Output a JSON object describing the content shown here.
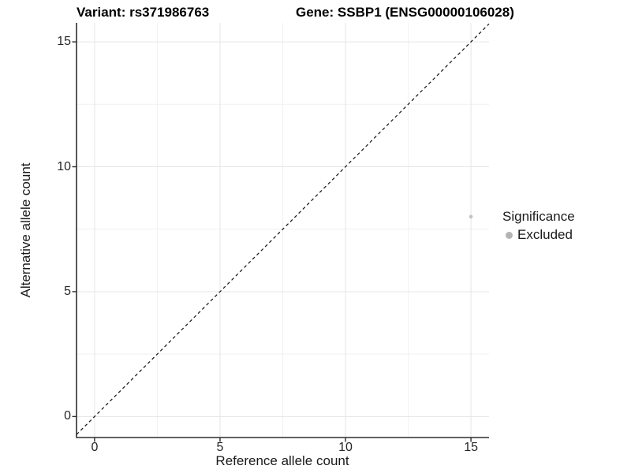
{
  "titles": {
    "left": "Variant: rs371986763",
    "right": "Gene: SSBP1 (ENSG00000106028)"
  },
  "axes": {
    "x_label": "Reference allele count",
    "y_label": "Alternative allele count"
  },
  "legend": {
    "title": "Significance",
    "items": [
      {
        "label": "Excluded",
        "color": "#b4b4b4"
      }
    ]
  },
  "colors": {
    "background": "#ffffff",
    "axis": "#2e2e2e",
    "grid_major": "#e5e5e5",
    "grid_minor": "#f1f1f1",
    "point": "#c2c2c2",
    "reference_line": "#111111"
  },
  "chart_data": {
    "type": "scatter",
    "title": "Variant: rs371986763",
    "subtitle": "Gene: SSBP1 (ENSG00000106028)",
    "xlabel": "Reference allele count",
    "ylabel": "Alternative allele count",
    "xlim": [
      -0.72,
      15.72
    ],
    "ylim": [
      -0.84,
      15.76
    ],
    "xticks": [
      0,
      5,
      10,
      15
    ],
    "yticks": [
      0,
      5,
      10,
      15
    ],
    "xticks_minor": [
      2.5,
      7.5,
      12.5
    ],
    "yticks_minor": [
      2.5,
      7.5,
      12.5
    ],
    "grid": "major+minor",
    "legend_title": "Significance",
    "legend_position": "right",
    "reference_line": {
      "type": "identity y=x",
      "style": "dashed"
    },
    "series": [
      {
        "name": "Excluded",
        "color": "#c2c2c2",
        "points": [
          {
            "x": 15,
            "y": 8
          }
        ]
      }
    ]
  }
}
